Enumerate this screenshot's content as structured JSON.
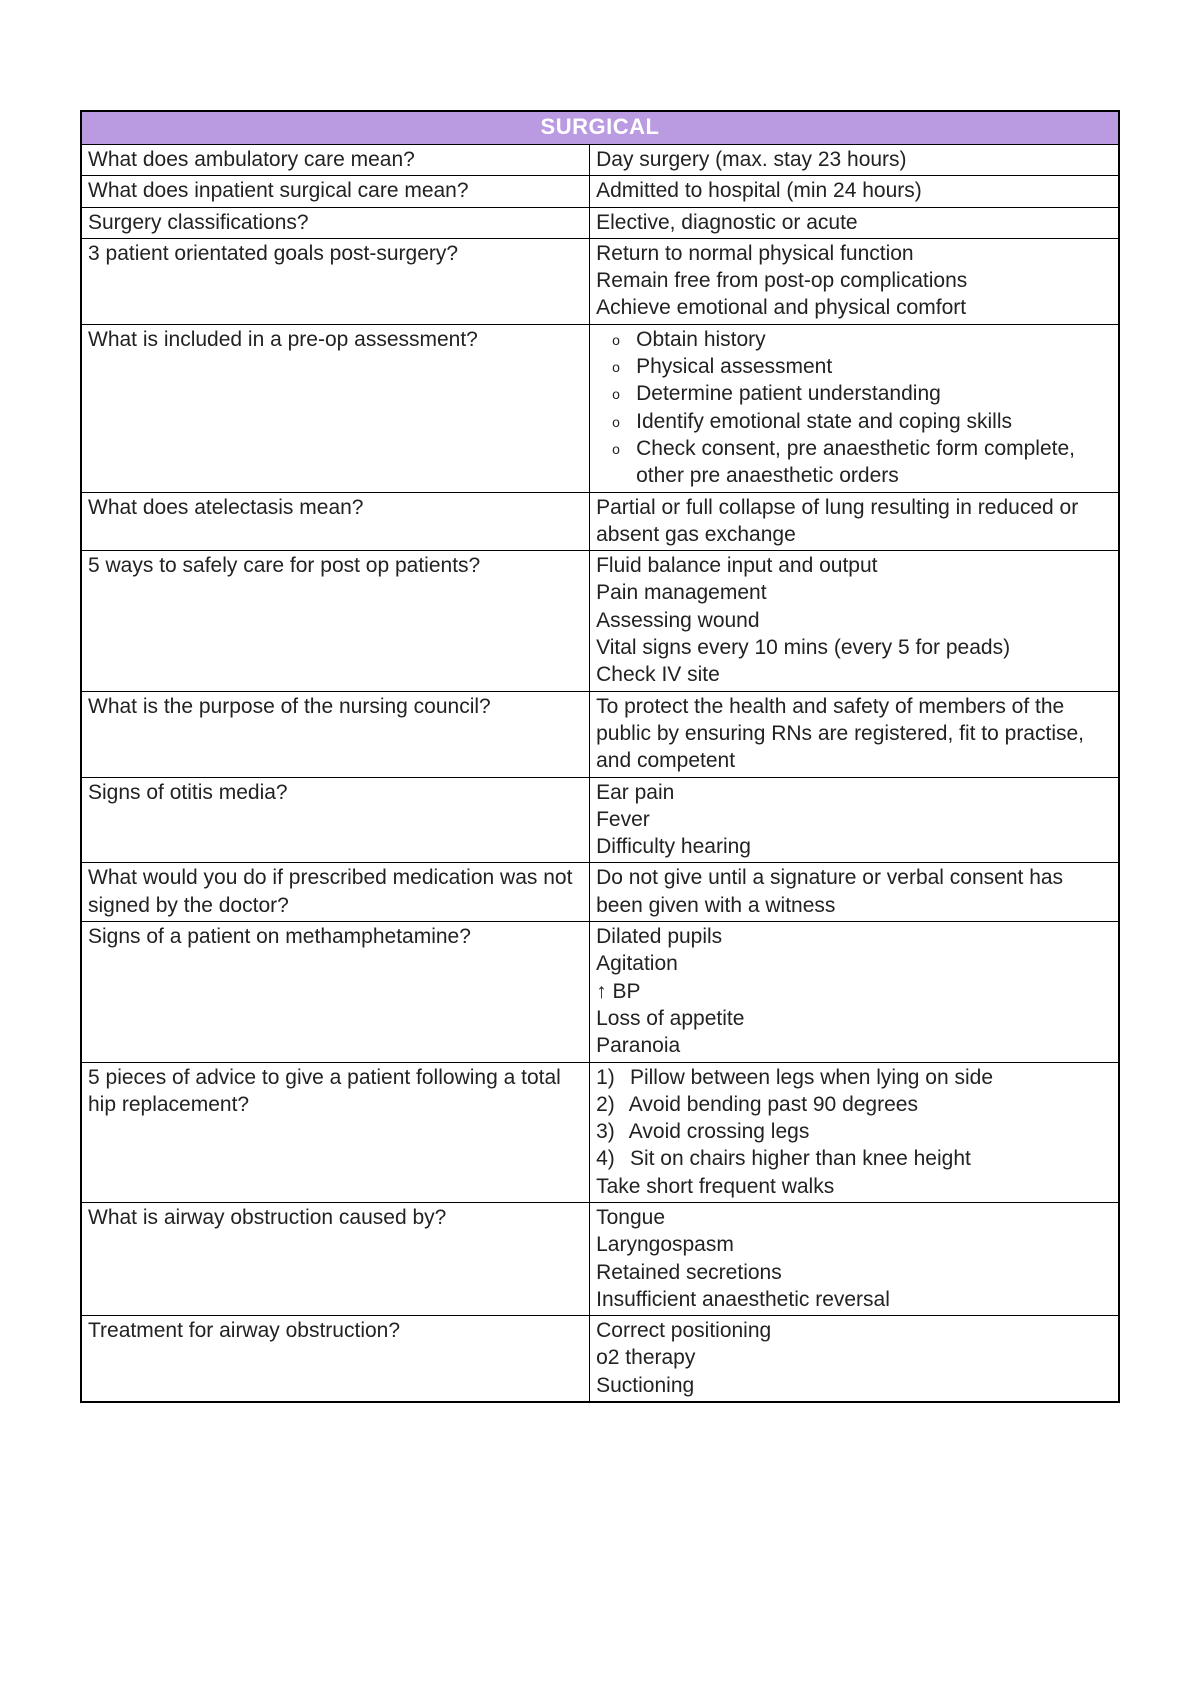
{
  "title": "SURGICAL",
  "header_bg": "#ba9ae0",
  "header_fg": "#ffffff",
  "border_color": "#000000",
  "font_family": "Arial",
  "rows": [
    {
      "question": "What does ambulatory care mean?",
      "answer_lines": [
        "Day surgery (max. stay 23 hours)"
      ]
    },
    {
      "question": "What does inpatient surgical care mean?",
      "answer_lines": [
        "Admitted to hospital (min 24 hours)"
      ]
    },
    {
      "question": "Surgery classifications?",
      "answer_lines": [
        "Elective, diagnostic or acute"
      ]
    },
    {
      "question": "3 patient orientated goals post-surgery?",
      "answer_lines": [
        "Return to normal physical function",
        "Remain free from post-op complications",
        "Achieve emotional and physical comfort"
      ]
    },
    {
      "question": "What is included in a pre-op assessment?",
      "answer_bullets": [
        "Obtain history",
        "Physical assessment",
        "Determine patient understanding",
        "Identify emotional state and coping skills",
        "Check consent, pre anaesthetic form complete, other pre anaesthetic orders"
      ]
    },
    {
      "question": "What does atelectasis mean?",
      "answer_lines": [
        "Partial or full collapse of lung resulting in reduced or absent gas exchange"
      ]
    },
    {
      "question": "5 ways to safely care for post op patients?",
      "answer_lines": [
        "Fluid balance input and output",
        "Pain management",
        "Assessing wound",
        "Vital signs every 10 mins (every 5 for peads)",
        "Check IV site"
      ]
    },
    {
      "question": "What is the purpose of the nursing council?",
      "answer_lines": [
        "To protect the health and safety of members of the public by ensuring RNs are registered, fit to practise, and competent"
      ]
    },
    {
      "question": "Signs of otitis media?",
      "answer_lines": [
        "Ear pain",
        "Fever",
        "Difficulty hearing"
      ]
    },
    {
      "question": "What would you do if prescribed medication was not signed by the doctor?",
      "answer_lines": [
        "Do not give until a signature or verbal consent has been given with a witness"
      ]
    },
    {
      "question": "Signs of a patient on methamphetamine?",
      "answer_lines": [
        "Dilated pupils",
        "Agitation",
        "↑ BP",
        "Loss of appetite",
        "Paranoia"
      ]
    },
    {
      "question": "5 pieces of advice to give a patient following a total hip replacement?",
      "answer_numbered": [
        "Pillow between legs when lying on side",
        "Avoid bending past 90 degrees",
        "Avoid crossing legs",
        "Sit on chairs higher than knee height"
      ],
      "answer_trailing": "Take short frequent walks"
    },
    {
      "question": "What is airway obstruction caused by?",
      "answer_lines": [
        "Tongue",
        "Laryngospasm",
        "Retained secretions",
        "Insufficient anaesthetic reversal"
      ]
    },
    {
      "question": "Treatment for airway obstruction?",
      "answer_lines": [
        "Correct positioning",
        "o2 therapy",
        "Suctioning"
      ]
    }
  ]
}
